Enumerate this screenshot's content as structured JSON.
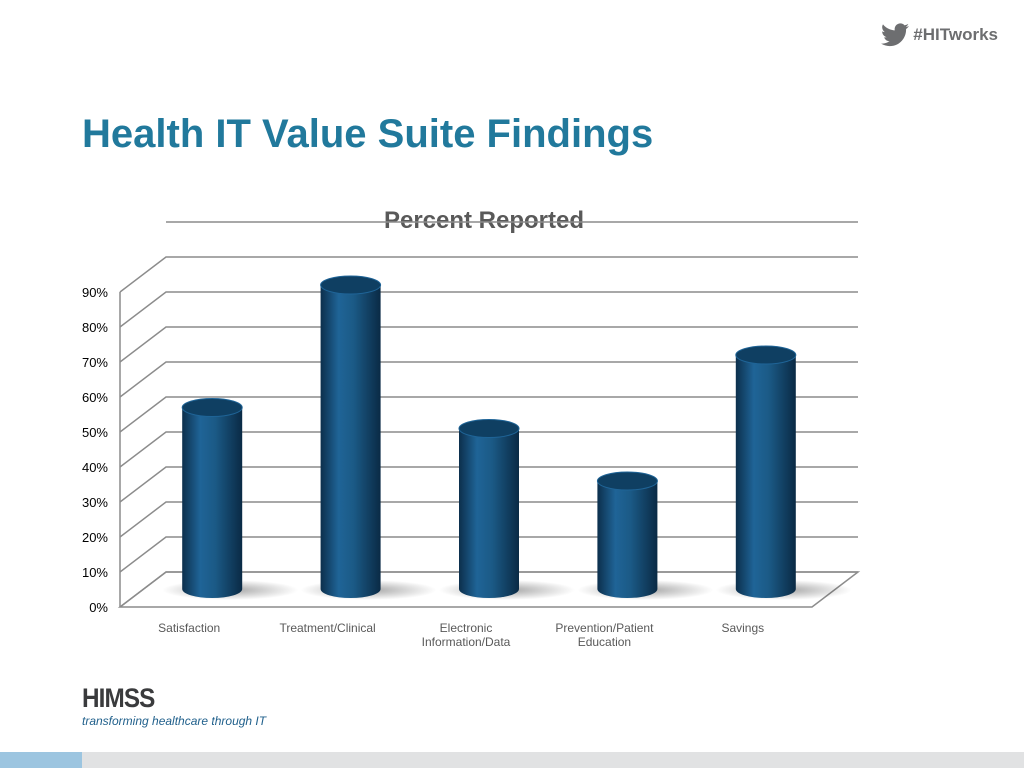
{
  "header": {
    "hashtag": "#HITworks",
    "icon": "twitter-bird-icon"
  },
  "slide": {
    "title": "Health IT Value Suite Findings"
  },
  "chart_data": {
    "type": "bar",
    "style": "3d-cylinder",
    "title": "Percent Reported",
    "categories": [
      "Satisfaction",
      "Treatment/Clinical",
      "Electronic Information/Data",
      "Prevention/Patient Education",
      "Savings"
    ],
    "category_lines": [
      [
        "Satisfaction"
      ],
      [
        "Treatment/Clinical"
      ],
      [
        "Electronic",
        "Information/Data"
      ],
      [
        "Prevention/Patient",
        "Education"
      ],
      [
        "Savings"
      ]
    ],
    "values": [
      52,
      87,
      46,
      31,
      67
    ],
    "ylim": [
      0,
      100
    ],
    "yticks": [
      0,
      10,
      20,
      30,
      40,
      50,
      60,
      70,
      80,
      90
    ],
    "tick_format": "percent",
    "grid": true,
    "bar_color": "#1b5a86"
  },
  "footer": {
    "logo": "HIMSS",
    "tagline": "transforming healthcare through IT",
    "accent_color": "#9cc5e0"
  }
}
